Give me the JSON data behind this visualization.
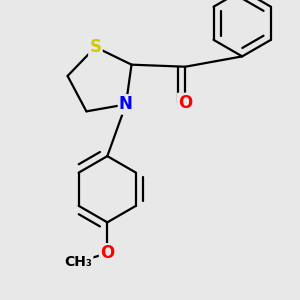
{
  "background_color": "#e8e8e8",
  "atom_colors": {
    "S": "#cccc00",
    "N": "#0000ff",
    "O": "#ff0000",
    "C": "#000000"
  },
  "bond_color": "#000000",
  "bond_width": 1.6,
  "font_size_S": 12,
  "font_size_N": 12,
  "font_size_O": 12,
  "font_size_small": 10,
  "xlim": [
    -0.5,
    2.2
  ],
  "ylim": [
    -1.6,
    1.3
  ]
}
